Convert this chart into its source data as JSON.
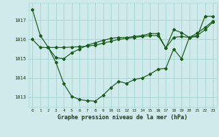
{
  "xlabel": "Graphe pression niveau de la mer (hPa)",
  "background_color": "#ceeaea",
  "grid_color": "#aad4d4",
  "line_color": "#1a5c1a",
  "xlim": [
    -0.5,
    23.5
  ],
  "ylim": [
    1012.5,
    1017.9
  ],
  "yticks": [
    1013,
    1014,
    1015,
    1016,
    1017
  ],
  "xticks": [
    0,
    1,
    2,
    3,
    4,
    5,
    6,
    7,
    8,
    9,
    10,
    11,
    12,
    13,
    14,
    15,
    16,
    17,
    18,
    19,
    20,
    21,
    22,
    23
  ],
  "line1_x": [
    0,
    1,
    2,
    3,
    4,
    5,
    6,
    7,
    8,
    9,
    10,
    11,
    12,
    13,
    14,
    15,
    16,
    17,
    18,
    19,
    20,
    21,
    22,
    23
  ],
  "line1_y": [
    1017.55,
    1016.2,
    1015.6,
    1014.8,
    1013.7,
    1013.05,
    1012.88,
    1012.82,
    1012.8,
    1013.1,
    1013.5,
    1013.82,
    1013.72,
    1013.92,
    1014.0,
    1014.2,
    1014.45,
    1014.5,
    1015.5,
    1015.0,
    1016.1,
    1016.15,
    1017.2,
    1017.2
  ],
  "line2_x": [
    0,
    1,
    2,
    3,
    4,
    5,
    6,
    7,
    8,
    9,
    10,
    11,
    12,
    13,
    14,
    15,
    16,
    17,
    18,
    19,
    20,
    21,
    22,
    23
  ],
  "line2_y": [
    1016.0,
    1015.58,
    1015.58,
    1015.58,
    1015.58,
    1015.6,
    1015.62,
    1015.65,
    1015.7,
    1015.8,
    1015.9,
    1016.0,
    1016.05,
    1016.1,
    1016.15,
    1016.2,
    1016.2,
    1015.55,
    1016.1,
    1016.15,
    1016.1,
    1016.2,
    1016.5,
    1016.9
  ],
  "line3_x": [
    2,
    3,
    4,
    5,
    6,
    7,
    8,
    9,
    10,
    11,
    12,
    13,
    14,
    15,
    16,
    17,
    18,
    19,
    20,
    21,
    22,
    23
  ],
  "line3_y": [
    1015.58,
    1015.05,
    1015.0,
    1015.3,
    1015.5,
    1015.7,
    1015.82,
    1015.95,
    1016.05,
    1016.1,
    1016.1,
    1016.15,
    1016.2,
    1016.3,
    1016.3,
    1015.55,
    1016.5,
    1016.35,
    1016.1,
    1016.32,
    1016.62,
    1016.95
  ]
}
